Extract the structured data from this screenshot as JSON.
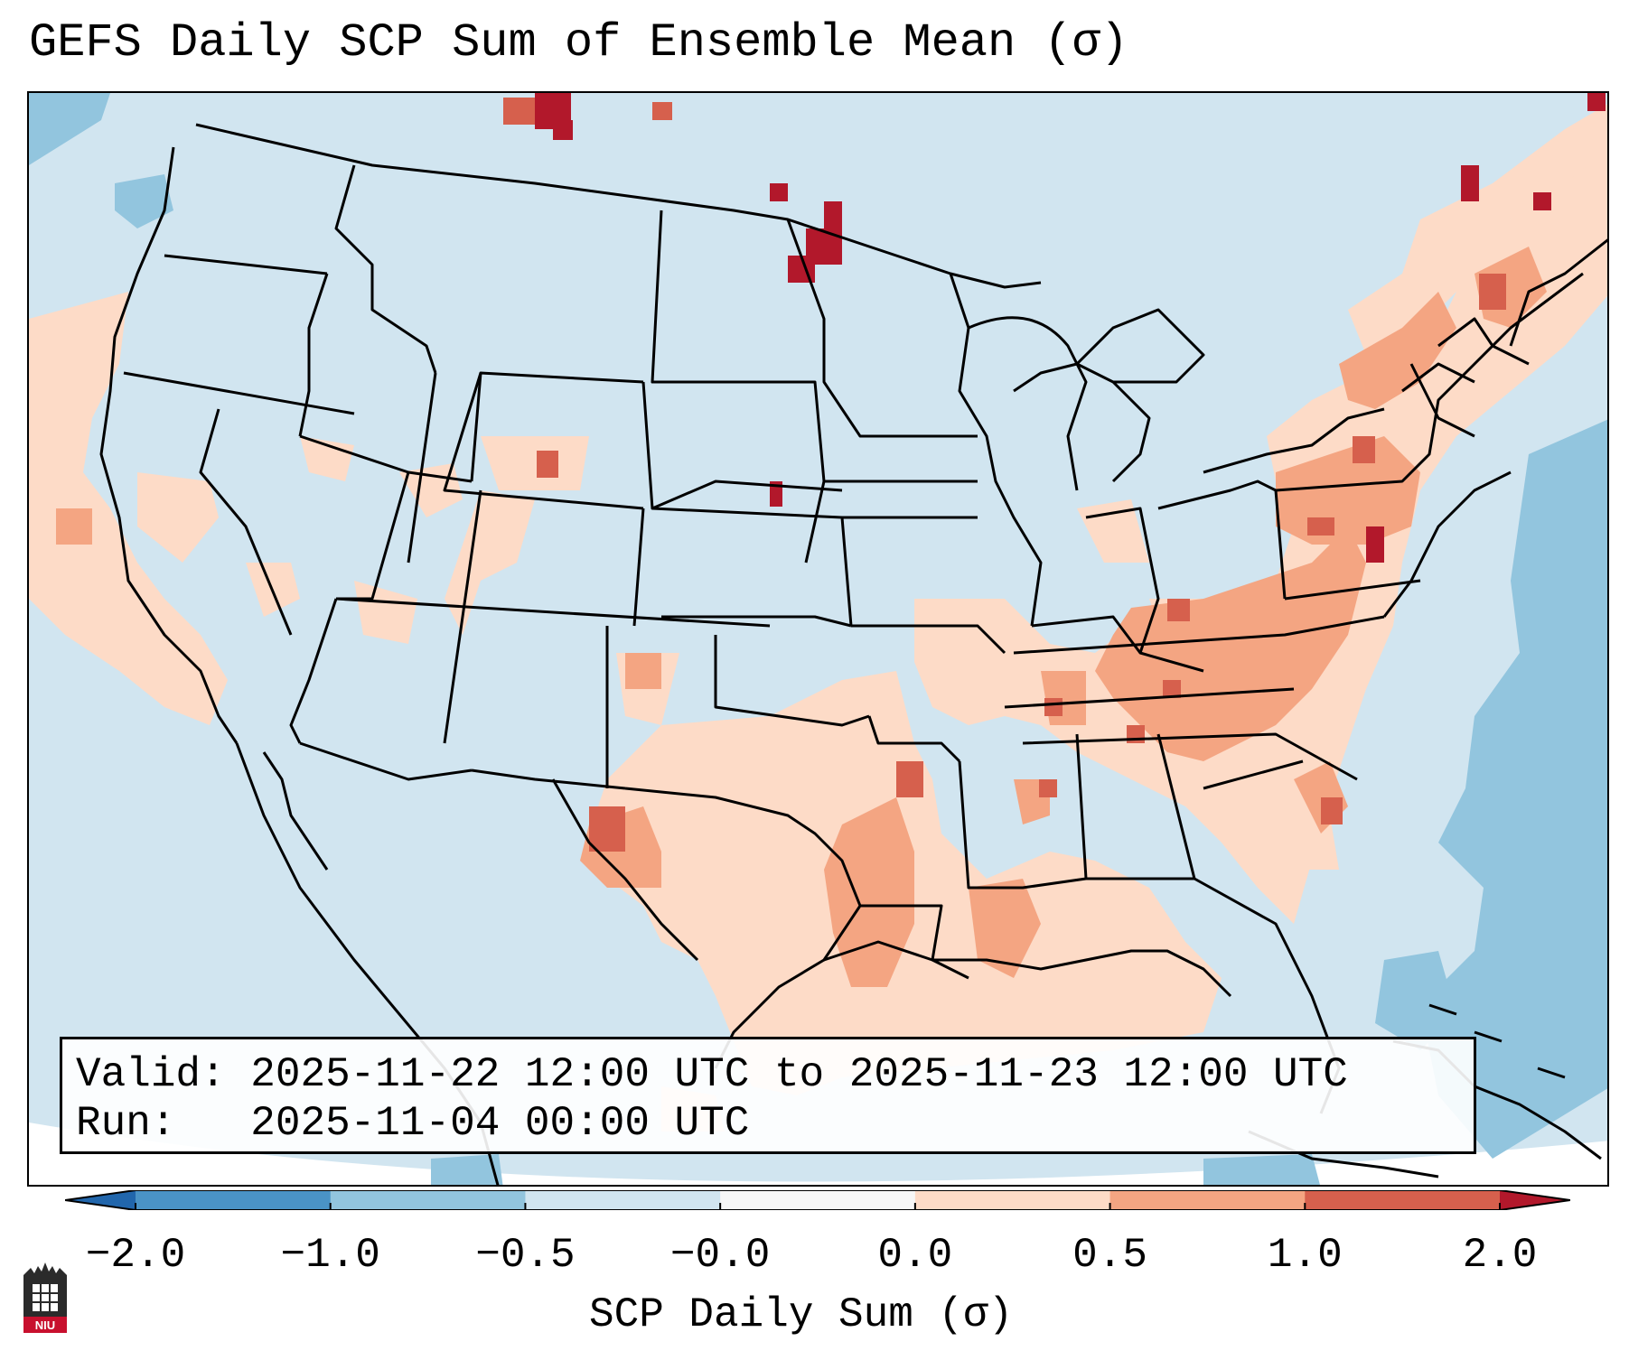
{
  "title": "GEFS Daily SCP Sum of Ensemble Mean (σ)",
  "info": {
    "valid_label": "Valid:",
    "valid_value": "2025-11-22 12:00 UTC to 2025-11-23 12:00 UTC",
    "run_label": "Run:",
    "run_value": "2025-11-04 00:00 UTC"
  },
  "colorbar": {
    "label": "SCP Daily Sum (σ)",
    "ticks": [
      "−2.0",
      "−1.0",
      "−0.5",
      "−0.0",
      "0.0",
      "0.5",
      "1.0",
      "2.0"
    ],
    "bins": [
      {
        "from": -2.0,
        "to": -1.0,
        "color": "#4a93c6"
      },
      {
        "from": -1.0,
        "to": -0.5,
        "color": "#92c5de"
      },
      {
        "from": -0.5,
        "to": -0.0,
        "color": "#d1e5f0"
      },
      {
        "from": -0.0,
        "to": 0.0,
        "color": "#f7f7f7"
      },
      {
        "from": 0.0,
        "to": 0.5,
        "color": "#fddbc7"
      },
      {
        "from": 0.5,
        "to": 1.0,
        "color": "#f4a582"
      },
      {
        "from": 1.0,
        "to": 2.0,
        "color": "#d6604d"
      }
    ],
    "under_color": "#2166ac",
    "over_color": "#b2182b"
  },
  "logo": {
    "text": "NIU",
    "icon": "niu-logo-icon"
  },
  "colors": {
    "background_field": "#d1e5f0",
    "light_positive": "#fddbc7",
    "moderate_positive": "#f4a582",
    "strong_positive": "#d6604d",
    "extreme_positive": "#b2182b",
    "negative": "#92c5de"
  }
}
